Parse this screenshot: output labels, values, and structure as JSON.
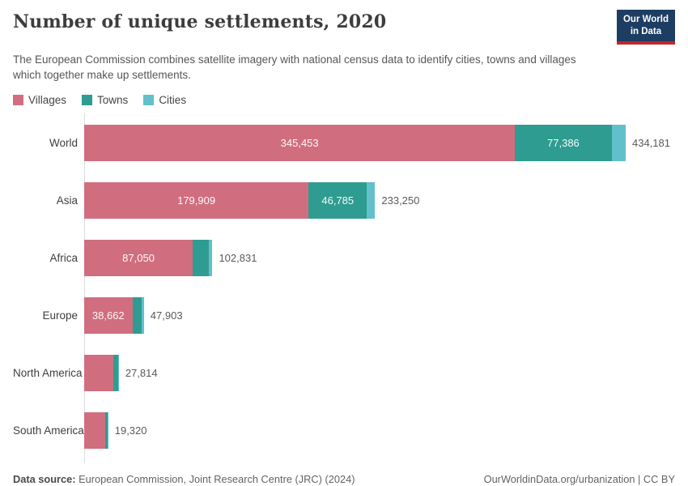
{
  "header": {
    "title": "Number of unique settlements, 2020",
    "subtitle": "The European Commission combines satellite imagery with national census data to identify cities, towns and villages which together make up settlements.",
    "logo_line1": "Our World",
    "logo_line2": "in Data"
  },
  "legend": [
    {
      "label": "Villages",
      "color": "#d06e7f"
    },
    {
      "label": "Towns",
      "color": "#2e9c90"
    },
    {
      "label": "Cities",
      "color": "#62c0cb"
    }
  ],
  "chart_data": {
    "type": "bar",
    "orientation": "horizontal",
    "stacked": true,
    "title": "Number of unique settlements, 2020",
    "categories": [
      "World",
      "Asia",
      "Africa",
      "Europe",
      "North America",
      "South America"
    ],
    "series": [
      {
        "name": "Villages",
        "color": "#d06e7f",
        "values": [
          345453,
          179909,
          87050,
          38662,
          23300,
          16850
        ]
      },
      {
        "name": "Towns",
        "color": "#2e9c90",
        "values": [
          77386,
          46785,
          12900,
          7700,
          3900,
          2290
        ]
      },
      {
        "name": "Cities",
        "color": "#62c0cb",
        "values": [
          11342,
          6556,
          2881,
          1541,
          614,
          180
        ]
      }
    ],
    "totals": [
      434181,
      233250,
      102831,
      47903,
      27814,
      19320
    ],
    "segment_labels": {
      "Villages": [
        "345,453",
        "179,909",
        "87,050",
        "38,662",
        "",
        ""
      ],
      "Towns": [
        "77,386",
        "46,785",
        "",
        "",
        "",
        ""
      ],
      "Cities": [
        "",
        "",
        "",
        "",
        "",
        ""
      ]
    },
    "total_labels": [
      "434,181",
      "233,250",
      "102,831",
      "47,903",
      "27,814",
      "19,320"
    ],
    "xlim": [
      0,
      434181
    ],
    "grid": false,
    "legend_position": "top-left"
  },
  "footer": {
    "source_label": "Data source:",
    "source_text": " European Commission, Joint Research Centre (JRC) (2024)",
    "link_text": "OurWorldinData.org/urbanization | CC BY"
  },
  "colors": {
    "villages": "#d06e7f",
    "towns": "#2e9c90",
    "cities": "#62c0cb",
    "logo_bg": "#1d3d63",
    "logo_stripe": "#c1272d",
    "axis_line": "#dcdcdc"
  }
}
